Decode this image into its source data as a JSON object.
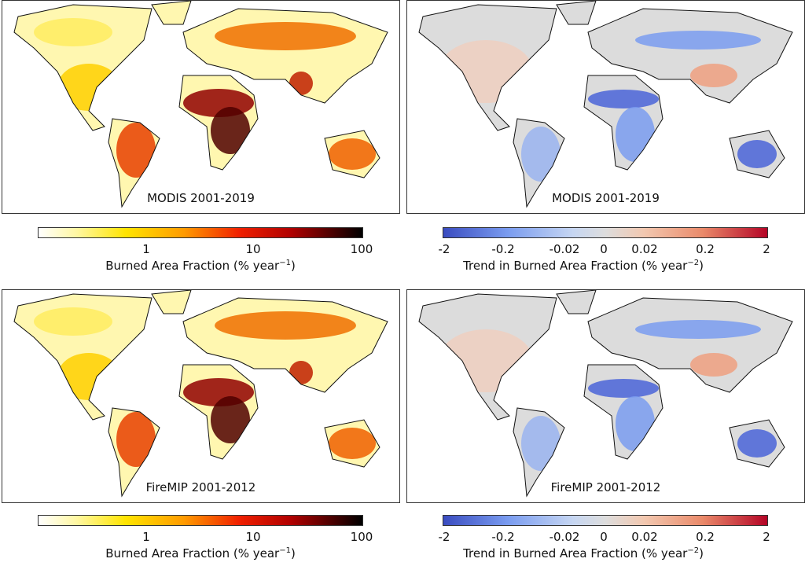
{
  "panels": [
    {
      "label": "MODIS 2001-2019",
      "kind": "burned-area"
    },
    {
      "label": "MODIS 2001-2019",
      "kind": "trend"
    },
    {
      "label": "FireMIP 2001-2012",
      "kind": "burned-area"
    },
    {
      "label": "FireMIP 2001-2012",
      "kind": "trend"
    }
  ],
  "colorbars": {
    "burned": {
      "ticks": [
        "1",
        "10",
        "100"
      ],
      "label": "Burned Area Fraction (% year",
      "exp": "−1",
      "close": ")",
      "scale": "log",
      "range": [
        0.1,
        100
      ],
      "colormap": [
        "#ffffff",
        "#ffe400",
        "#f02000",
        "#000000"
      ]
    },
    "trend": {
      "ticks": [
        "-2",
        "-0.2",
        "-0.02",
        "0",
        "0.02",
        "0.2",
        "2"
      ],
      "label": "Trend in Burned Area Fraction (% year",
      "exp": "−2",
      "close": ")",
      "scale": "symlog",
      "range": [
        -2,
        2
      ],
      "colormap": [
        "#3a4cc0",
        "#dddddd",
        "#b40426"
      ]
    }
  }
}
